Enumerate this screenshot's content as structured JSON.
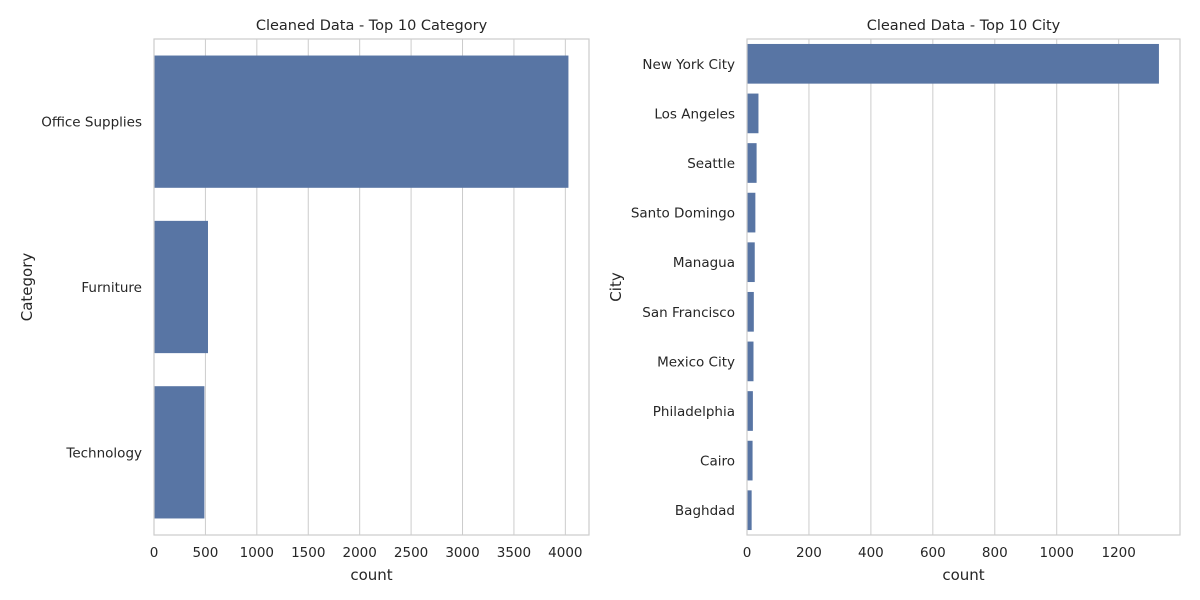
{
  "chart_data": [
    {
      "type": "bar",
      "orientation": "horizontal",
      "title": "Cleaned Data - Top 10 Category",
      "xlabel": "count",
      "ylabel": "Category",
      "categories": [
        "Office Supplies",
        "Furniture",
        "Technology"
      ],
      "values": [
        4030,
        525,
        490
      ],
      "xlim": [
        0,
        4230
      ],
      "xticks": [
        0,
        500,
        1000,
        1500,
        2000,
        2500,
        3000,
        3500,
        4000
      ],
      "grid": "vertical",
      "bar_color": "#5875a4"
    },
    {
      "type": "bar",
      "orientation": "horizontal",
      "title": "Cleaned Data - Top 10 City",
      "xlabel": "count",
      "ylabel": "City",
      "categories": [
        "New York City",
        "Los Angeles",
        "Seattle",
        "Santo Domingo",
        "Managua",
        "San Francisco",
        "Mexico City",
        "Philadelphia",
        "Cairo",
        "Baghdad"
      ],
      "values": [
        1330,
        37,
        31,
        27,
        25,
        22,
        21,
        19,
        18,
        15
      ],
      "xlim": [
        0,
        1398
      ],
      "xticks": [
        0,
        200,
        400,
        600,
        800,
        1000,
        1200
      ],
      "grid": "vertical",
      "bar_color": "#5875a4"
    }
  ]
}
